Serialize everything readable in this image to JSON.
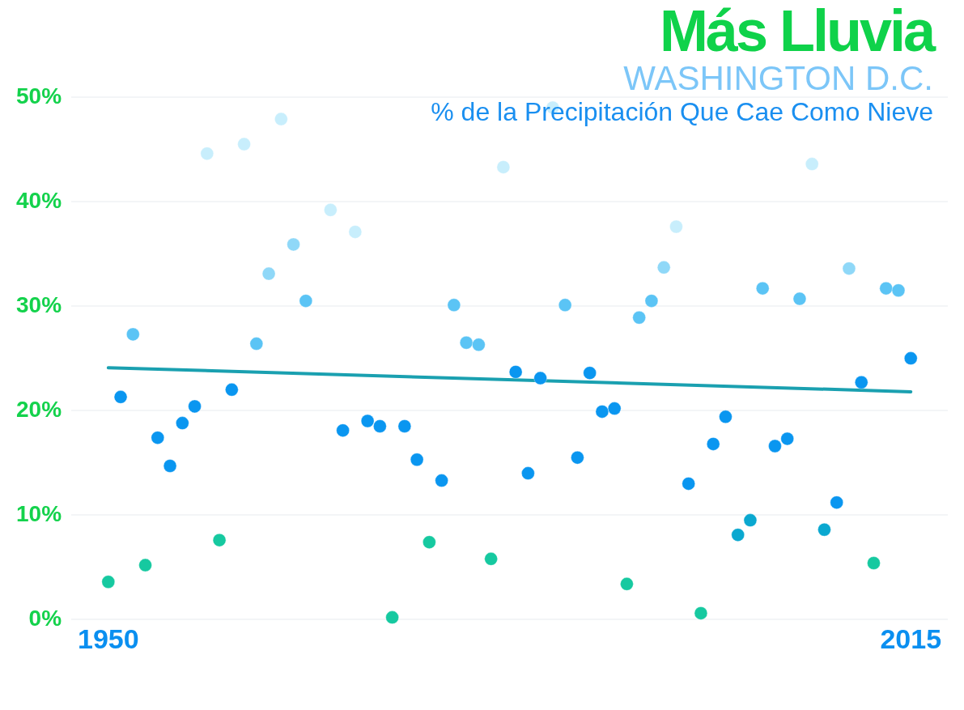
{
  "chart_data": {
    "type": "scatter",
    "title": "Más Lluvia",
    "subtitle": "WASHINGTON D.C.",
    "ylabel": "% de la Precipitación Que Cae Como Nieve",
    "xlim": [
      1947,
      2018
    ],
    "xticks": [
      1950,
      2015
    ],
    "ylim": [
      0,
      50
    ],
    "yticks": [
      {
        "value": 0,
        "label": "0%"
      },
      {
        "value": 10,
        "label": "10%"
      },
      {
        "value": 20,
        "label": "20%"
      },
      {
        "value": 30,
        "label": "30%"
      },
      {
        "value": 40,
        "label": "40%"
      },
      {
        "value": 50,
        "label": "50%"
      }
    ],
    "grid": "y",
    "legend": false,
    "marker": "circle",
    "series": [
      {
        "x": [
          1950,
          1951,
          1952,
          1953,
          1954,
          1955,
          1956,
          1957,
          1958,
          1959,
          1960,
          1961,
          1962,
          1963,
          1964,
          1965,
          1966,
          1968,
          1969,
          1970,
          1971,
          1972,
          1973,
          1974,
          1975,
          1976,
          1977,
          1978,
          1979,
          1980,
          1981,
          1982,
          1983,
          1984,
          1985,
          1986,
          1987,
          1988,
          1989,
          1990,
          1991,
          1992,
          1993,
          1994,
          1995,
          1996,
          1997,
          1998,
          1999,
          2000,
          2001,
          2002,
          2003,
          2004,
          2005,
          2006,
          2007,
          2008,
          2009,
          2010,
          2011,
          2012,
          2013,
          2014,
          2015
        ],
        "values": [
          3.6,
          21.3,
          27.3,
          5.2,
          17.4,
          14.7,
          18.8,
          20.4,
          44.6,
          7.6,
          22.0,
          45.5,
          26.4,
          33.1,
          47.9,
          35.9,
          30.5,
          39.2,
          18.1,
          37.1,
          19.0,
          18.5,
          0.2,
          18.5,
          15.3,
          7.4,
          13.3,
          30.1,
          26.5,
          26.3,
          5.8,
          43.3,
          23.7,
          14.0,
          23.1,
          49.0,
          30.1,
          15.5,
          23.6,
          19.9,
          20.2,
          3.4,
          28.9,
          30.5,
          33.7,
          37.6,
          13.0,
          0.6,
          16.8,
          19.4,
          8.1,
          9.5,
          31.7,
          16.6,
          17.3,
          30.7,
          43.6,
          8.6,
          11.2,
          33.6,
          22.7,
          5.4,
          31.7,
          31.5,
          25.0
        ],
        "colors": [
          "#16c9a0",
          "#0a96f0",
          "#5bc4f5",
          "#16c9a0",
          "#0a96f0",
          "#0a96f0",
          "#0a96f0",
          "#0a96f0",
          "#c8eefc",
          "#16c9a0",
          "#0a96f0",
          "#c8eefc",
          "#5bc4f5",
          "#8fd8f8",
          "#c8eefc",
          "#8fd8f8",
          "#5bc4f5",
          "#c8eefc",
          "#0a96f0",
          "#c8eefc",
          "#0a96f0",
          "#0a96f0",
          "#16c9a0",
          "#0a96f0",
          "#0a96f0",
          "#16c9a0",
          "#0a96f0",
          "#5bc4f5",
          "#5bc4f5",
          "#5bc4f5",
          "#16c9a0",
          "#c8eefc",
          "#0a96f0",
          "#0a96f0",
          "#0a96f0",
          "#c8eefc",
          "#5bc4f5",
          "#0a96f0",
          "#0a96f0",
          "#0a96f0",
          "#0a96f0",
          "#16c9a0",
          "#5bc4f5",
          "#5bc4f5",
          "#8fd8f8",
          "#c8eefc",
          "#0a96f0",
          "#16c9a0",
          "#0a96f0",
          "#0a96f0",
          "#0aa8d0",
          "#0aa8d0",
          "#5bc4f5",
          "#0a96f0",
          "#0a96f0",
          "#5bc4f5",
          "#c8eefc",
          "#0aa8d0",
          "#0a96f0",
          "#8fd8f8",
          "#0a96f0",
          "#16c9a0",
          "#5bc4f5",
          "#5bc4f5",
          "#0a96f0"
        ]
      },
      {
        "type": "line",
        "x": [
          1950,
          2015
        ],
        "values": [
          24.1,
          21.8
        ],
        "color": "#1aa0b0",
        "marker": "none"
      }
    ]
  }
}
